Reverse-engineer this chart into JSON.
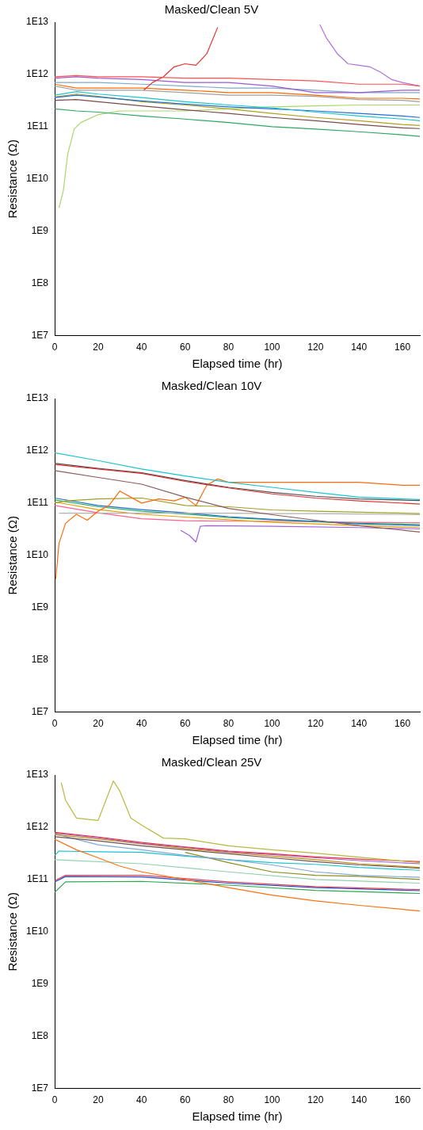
{
  "chart_data": [
    {
      "type": "line",
      "title": "Masked/Clean 5V",
      "xlabel": "Elapsed time (hr)",
      "ylabel": "Resistance (Ω)",
      "xlim": [
        0,
        168
      ],
      "xticks": [
        0,
        20,
        40,
        60,
        80,
        100,
        120,
        140,
        160
      ],
      "ylim": [
        10000000.0,
        10000000000000.0
      ],
      "yticks": [
        {
          "value": 10000000.0,
          "label": "1E7"
        },
        {
          "value": 100000000.0,
          "label": "1E8"
        },
        {
          "value": 1000000000.0,
          "label": "1E9"
        },
        {
          "value": 10000000000.0,
          "label": "1E10"
        },
        {
          "value": 100000000000.0,
          "label": "1E11"
        },
        {
          "value": 1000000000000.0,
          "label": "1E12"
        },
        {
          "value": 10000000000000.0,
          "label": "1E13"
        }
      ],
      "log": "y",
      "grid": false,
      "legend": false,
      "marker": "none",
      "line_style": "solid",
      "series": [
        {
          "color": "#ff5050",
          "x": [
            0,
            10,
            20,
            40,
            60,
            80,
            100,
            120,
            140,
            160,
            168
          ],
          "values": [
            900000000000.0,
            950000000000.0,
            900000000000.0,
            900000000000.0,
            850000000000.0,
            850000000000.0,
            800000000000.0,
            750000000000.0,
            650000000000.0,
            650000000000.0,
            600000000000.0
          ]
        },
        {
          "color": "#e8322c",
          "x": [
            41,
            45,
            50,
            55,
            60,
            65,
            70,
            75
          ],
          "values": [
            500000000000.0,
            700000000000.0,
            900000000000.0,
            1400000000000.0,
            1600000000000.0,
            1500000000000.0,
            2500000000000.0,
            8000000000000.0
          ]
        },
        {
          "color": "#9b59d0",
          "x": [
            0,
            10,
            20,
            40,
            60,
            80,
            100,
            120,
            140,
            160,
            168
          ],
          "values": [
            850000000000.0,
            900000000000.0,
            850000000000.0,
            800000000000.0,
            700000000000.0,
            700000000000.0,
            600000000000.0,
            450000000000.0,
            450000000000.0,
            500000000000.0,
            500000000000.0
          ]
        },
        {
          "color": "#b070e0",
          "x": [
            122,
            125,
            130,
            135,
            140,
            145,
            150,
            155,
            160,
            168
          ],
          "values": [
            9000000000000.0,
            5000000000000.0,
            2500000000000.0,
            1600000000000.0,
            1500000000000.0,
            1400000000000.0,
            1100000000000.0,
            800000000000.0,
            700000000000.0,
            600000000000.0
          ]
        },
        {
          "color": "#7fa7c9",
          "x": [
            0,
            10,
            20,
            40,
            60,
            80,
            100,
            120,
            140,
            160,
            168
          ],
          "values": [
            700000000000.0,
            700000000000.0,
            700000000000.0,
            650000000000.0,
            600000000000.0,
            550000000000.0,
            550000000000.0,
            500000000000.0,
            450000000000.0,
            450000000000.0,
            450000000000.0
          ]
        },
        {
          "color": "#ff6a00",
          "x": [
            0,
            10,
            20,
            40,
            60,
            80,
            100,
            120,
            140,
            160,
            168
          ],
          "values": [
            650000000000.0,
            550000000000.0,
            550000000000.0,
            550000000000.0,
            500000000000.0,
            450000000000.0,
            450000000000.0,
            400000000000.0,
            350000000000.0,
            350000000000.0,
            340000000000.0
          ]
        },
        {
          "color": "#a0a0a0",
          "x": [
            0,
            10,
            20,
            40,
            60,
            80,
            100,
            120,
            140,
            160,
            168
          ],
          "values": [
            600000000000.0,
            500000000000.0,
            500000000000.0,
            500000000000.0,
            450000000000.0,
            400000000000.0,
            400000000000.0,
            380000000000.0,
            330000000000.0,
            320000000000.0,
            300000000000.0
          ]
        },
        {
          "color": "#19c3d0",
          "x": [
            0,
            10,
            20,
            40,
            60,
            80,
            100,
            120,
            140,
            160,
            168
          ],
          "values": [
            400000000000.0,
            470000000000.0,
            420000000000.0,
            360000000000.0,
            300000000000.0,
            260000000000.0,
            230000000000.0,
            190000000000.0,
            160000000000.0,
            140000000000.0,
            130000000000.0
          ]
        },
        {
          "color": "#1f6fd6",
          "x": [
            0,
            10,
            20,
            40,
            60,
            80,
            100,
            120,
            140,
            160,
            168
          ],
          "values": [
            360000000000.0,
            400000000000.0,
            370000000000.0,
            310000000000.0,
            270000000000.0,
            240000000000.0,
            220000000000.0,
            200000000000.0,
            180000000000.0,
            160000000000.0,
            150000000000.0
          ]
        },
        {
          "color": "#b0a020",
          "x": [
            0,
            10,
            20,
            40,
            60,
            80,
            100,
            120,
            140,
            160,
            168
          ],
          "values": [
            370000000000.0,
            420000000000.0,
            380000000000.0,
            300000000000.0,
            260000000000.0,
            220000000000.0,
            180000000000.0,
            150000000000.0,
            130000000000.0,
            110000000000.0,
            105000000000.0
          ]
        },
        {
          "color": "#7a4a4a",
          "x": [
            0,
            10,
            20,
            40,
            60,
            80,
            100,
            120,
            140,
            160,
            168
          ],
          "values": [
            320000000000.0,
            330000000000.0,
            300000000000.0,
            250000000000.0,
            210000000000.0,
            180000000000.0,
            150000000000.0,
            130000000000.0,
            110000000000.0,
            95000000000.0,
            92000000000.0
          ]
        },
        {
          "color": "#2ca860",
          "x": [
            0,
            10,
            20,
            40,
            60,
            80,
            100,
            120,
            140,
            160,
            168
          ],
          "values": [
            220000000000.0,
            200000000000.0,
            190000000000.0,
            160000000000.0,
            140000000000.0,
            120000000000.0,
            100000000000.0,
            90000000000.0,
            80000000000.0,
            70000000000.0,
            65000000000.0
          ]
        },
        {
          "color": "#a8d86a",
          "x": [
            2,
            4,
            6,
            9,
            12,
            20,
            30,
            40,
            60,
            80,
            100,
            120,
            140,
            168
          ],
          "values": [
            2800000000.0,
            6000000000.0,
            30000000000.0,
            90000000000.0,
            120000000000.0,
            170000000000.0,
            200000000000.0,
            200000000000.0,
            200000000000.0,
            220000000000.0,
            240000000000.0,
            250000000000.0,
            260000000000.0,
            260000000000.0
          ]
        }
      ]
    },
    {
      "type": "line",
      "title": "Masked/Clean 10V",
      "xlabel": "Elapsed time (hr)",
      "ylabel": "Resistance (Ω)",
      "xlim": [
        0,
        168
      ],
      "xticks": [
        0,
        20,
        40,
        60,
        80,
        100,
        120,
        140,
        160
      ],
      "ylim": [
        10000000.0,
        10000000000000.0
      ],
      "yticks": [
        {
          "value": 10000000.0,
          "label": "1E7"
        },
        {
          "value": 100000000.0,
          "label": "1E8"
        },
        {
          "value": 1000000000.0,
          "label": "1E9"
        },
        {
          "value": 10000000000.0,
          "label": "1E10"
        },
        {
          "value": 100000000000.0,
          "label": "1E11"
        },
        {
          "value": 1000000000000.0,
          "label": "1E12"
        },
        {
          "value": 10000000000000.0,
          "label": "1E13"
        }
      ],
      "log": "y",
      "grid": false,
      "legend": false,
      "marker": "none",
      "line_style": "solid",
      "series": [
        {
          "color": "#19c3d0",
          "x": [
            0,
            20,
            40,
            60,
            80,
            100,
            120,
            140,
            168
          ],
          "values": [
            920000000000.0,
            650000000000.0,
            450000000000.0,
            330000000000.0,
            250000000000.0,
            200000000000.0,
            160000000000.0,
            130000000000.0,
            117000000000.0
          ]
        },
        {
          "color": "#e03030",
          "x": [
            0,
            20,
            40,
            60,
            80,
            100,
            120,
            140,
            168
          ],
          "values": [
            550000000000.0,
            450000000000.0,
            370000000000.0,
            260000000000.0,
            195000000000.0,
            150000000000.0,
            125000000000.0,
            110000000000.0,
            96000000000.0
          ]
        },
        {
          "color": "#505050",
          "x": [
            0,
            20,
            40,
            60,
            80,
            100,
            120,
            140,
            168
          ],
          "values": [
            580000000000.0,
            460000000000.0,
            380000000000.0,
            270000000000.0,
            200000000000.0,
            160000000000.0,
            135000000000.0,
            120000000000.0,
            112000000000.0
          ]
        },
        {
          "color": "#8a5a5a",
          "x": [
            0,
            20,
            40,
            60,
            80,
            100,
            120,
            140,
            168
          ],
          "values": [
            420000000000.0,
            310000000000.0,
            230000000000.0,
            130000000000.0,
            79000000000.0,
            60000000000.0,
            47000000000.0,
            37000000000.0,
            28000000000.0
          ]
        },
        {
          "color": "#ff6a10",
          "x": [
            0.5,
            2,
            5,
            10,
            15,
            20,
            25,
            30,
            35,
            40,
            48,
            55,
            60,
            65,
            70,
            75,
            80,
            100,
            120,
            140,
            160,
            168
          ],
          "values": [
            3500000000.0,
            17000000000.0,
            41000000000.0,
            61000000000.0,
            47000000000.0,
            70000000000.0,
            90000000000.0,
            170000000000.0,
            130000000000.0,
            100000000000.0,
            120000000000.0,
            110000000000.0,
            130000000000.0,
            90000000000.0,
            220000000000.0,
            290000000000.0,
            250000000000.0,
            250000000000.0,
            250000000000.0,
            250000000000.0,
            220000000000.0,
            220000000000.0
          ]
        },
        {
          "color": "#a0a020",
          "x": [
            0,
            5,
            20,
            40,
            60,
            80,
            100,
            120,
            168
          ],
          "values": [
            100000000000.0,
            110000000000.0,
            120000000000.0,
            125000000000.0,
            90000000000.0,
            85000000000.0,
            74000000000.0,
            70000000000.0,
            63000000000.0
          ]
        },
        {
          "color": "#b0b0b0",
          "x": [
            2,
            20,
            40,
            60,
            80,
            100,
            120,
            140,
            168
          ],
          "values": [
            64000000000.0,
            64000000000.0,
            64000000000.0,
            64000000000.0,
            64000000000.0,
            63000000000.0,
            63000000000.0,
            62000000000.0,
            60000000000.0
          ]
        },
        {
          "color": "#2070d0",
          "x": [
            0,
            20,
            40,
            60,
            80,
            100,
            120,
            140,
            168
          ],
          "values": [
            125000000000.0,
            90000000000.0,
            75000000000.0,
            65000000000.0,
            55000000000.0,
            49000000000.0,
            45000000000.0,
            40000000000.0,
            37000000000.0
          ]
        },
        {
          "color": "#2ca860",
          "x": [
            0,
            20,
            40,
            60,
            80,
            100,
            120,
            140,
            168
          ],
          "values": [
            115000000000.0,
            85000000000.0,
            70000000000.0,
            62000000000.0,
            53000000000.0,
            48000000000.0,
            44000000000.0,
            41000000000.0,
            39000000000.0
          ]
        },
        {
          "color": "#e0a000",
          "x": [
            0,
            20,
            40,
            60,
            80,
            100,
            120,
            140,
            168
          ],
          "values": [
            105000000000.0,
            75000000000.0,
            61000000000.0,
            54000000000.0,
            48000000000.0,
            43000000000.0,
            40000000000.0,
            37000000000.0,
            34000000000.0
          ]
        },
        {
          "color": "#ff6090",
          "x": [
            0,
            20,
            40,
            60,
            80,
            100,
            120,
            140,
            168
          ],
          "values": [
            90000000000.0,
            65000000000.0,
            50000000000.0,
            46000000000.0,
            45000000000.0,
            45000000000.0,
            44000000000.0,
            43000000000.0,
            42000000000.0
          ]
        },
        {
          "color": "#a060e0",
          "x": [
            58,
            62,
            65,
            67,
            70,
            100,
            140,
            168
          ],
          "values": [
            30000000000.0,
            24000000000.0,
            18000000000.0,
            36000000000.0,
            37000000000.0,
            36000000000.0,
            34000000000.0,
            32000000000.0
          ]
        }
      ]
    },
    {
      "type": "line",
      "title": "Masked/Clean 25V",
      "xlabel": "Elapsed time (hr)",
      "ylabel": "Resistance (Ω)",
      "xlim": [
        0,
        168
      ],
      "xticks": [
        0,
        20,
        40,
        60,
        80,
        100,
        120,
        140,
        160
      ],
      "ylim": [
        10000000.0,
        10000000000000.0
      ],
      "yticks": [
        {
          "value": 10000000.0,
          "label": "1E7"
        },
        {
          "value": 100000000.0,
          "label": "1E8"
        },
        {
          "value": 1000000000.0,
          "label": "1E9"
        },
        {
          "value": 10000000000.0,
          "label": "1E10"
        },
        {
          "value": 100000000000.0,
          "label": "1E11"
        },
        {
          "value": 1000000000000.0,
          "label": "1E12"
        },
        {
          "value": 10000000000000.0,
          "label": "1E13"
        }
      ],
      "log": "y",
      "grid": false,
      "legend": false,
      "marker": "none",
      "line_style": "solid",
      "series": [
        {
          "color": "#b8b840",
          "x": [
            3,
            5,
            10,
            20,
            27,
            30,
            35,
            40,
            50,
            60,
            80,
            100,
            120,
            168
          ],
          "values": [
            7200000000000.0,
            3300000000000.0,
            1500000000000.0,
            1350000000000.0,
            7700000000000.0,
            4900000000000.0,
            1500000000000.0,
            1100000000000.0,
            620000000000.0,
            600000000000.0,
            440000000000.0,
            370000000000.0,
            320000000000.0,
            210000000000.0
          ]
        },
        {
          "color": "#f03040",
          "x": [
            0,
            20,
            40,
            60,
            80,
            100,
            120,
            140,
            168
          ],
          "values": [
            800000000000.0,
            650000000000.0,
            510000000000.0,
            420000000000.0,
            350000000000.0,
            310000000000.0,
            270000000000.0,
            245000000000.0,
            220000000000.0
          ]
        },
        {
          "color": "#a060d0",
          "x": [
            0,
            20,
            40,
            60,
            80,
            100,
            120,
            140,
            168
          ],
          "values": [
            770000000000.0,
            630000000000.0,
            490000000000.0,
            410000000000.0,
            340000000000.0,
            300000000000.0,
            260000000000.0,
            230000000000.0,
            200000000000.0
          ]
        },
        {
          "color": "#c09010",
          "x": [
            0,
            20,
            40,
            60,
            80,
            100,
            120,
            140,
            168
          ],
          "values": [
            720000000000.0,
            600000000000.0,
            480000000000.0,
            390000000000.0,
            330000000000.0,
            280000000000.0,
            240000000000.0,
            200000000000.0,
            170000000000.0
          ]
        },
        {
          "color": "#705050",
          "x": [
            0,
            20,
            40,
            60,
            80,
            100,
            120,
            140,
            168
          ],
          "values": [
            660000000000.0,
            550000000000.0,
            440000000000.0,
            370000000000.0,
            310000000000.0,
            260000000000.0,
            220000000000.0,
            190000000000.0,
            165000000000.0
          ]
        },
        {
          "color": "#7fa7d9",
          "x": [
            0,
            20,
            40,
            60,
            80,
            100,
            120,
            140,
            168
          ],
          "values": [
            750000000000.0,
            460000000000.0,
            370000000000.0,
            290000000000.0,
            240000000000.0,
            190000000000.0,
            140000000000.0,
            120000000000.0,
            110000000000.0
          ]
        },
        {
          "color": "#8c8c1a",
          "x": [
            60,
            80,
            100,
            120,
            140,
            168
          ],
          "values": [
            330000000000.0,
            210000000000.0,
            140000000000.0,
            120000000000.0,
            115000000000.0,
            100000000000.0
          ]
        },
        {
          "color": "#ff7010",
          "x": [
            0,
            10,
            20,
            30,
            40,
            60,
            80,
            100,
            120,
            140,
            168
          ],
          "values": [
            590000000000.0,
            370000000000.0,
            260000000000.0,
            180000000000.0,
            140000000000.0,
            100000000000.0,
            70000000000.0,
            50000000000.0,
            39000000000.0,
            32000000000.0,
            25000000000.0
          ]
        },
        {
          "color": "#19c3d0",
          "x": [
            0,
            2,
            20,
            40,
            60,
            80,
            100,
            120,
            140,
            168
          ],
          "values": [
            290000000000.0,
            350000000000.0,
            340000000000.0,
            330000000000.0,
            280000000000.0,
            240000000000.0,
            210000000000.0,
            195000000000.0,
            170000000000.0,
            150000000000.0
          ]
        },
        {
          "color": "#90d0b0",
          "x": [
            0,
            40,
            80,
            120,
            168
          ],
          "values": [
            240000000000.0,
            200000000000.0,
            140000000000.0,
            100000000000.0,
            85000000000.0
          ]
        },
        {
          "color": "#e04050",
          "x": [
            0,
            5,
            40,
            80,
            120,
            168
          ],
          "values": [
            95000000000.0,
            120000000000.0,
            120000000000.0,
            90000000000.0,
            73000000000.0,
            64000000000.0
          ]
        },
        {
          "color": "#2050d0",
          "x": [
            0,
            5,
            40,
            80,
            120,
            168
          ],
          "values": [
            90000000000.0,
            114000000000.0,
            112000000000.0,
            85000000000.0,
            70000000000.0,
            61000000000.0
          ]
        },
        {
          "color": "#2ca850",
          "x": [
            0,
            5,
            40,
            80,
            120,
            168
          ],
          "values": [
            57000000000.0,
            90000000000.0,
            92000000000.0,
            78000000000.0,
            62000000000.0,
            54000000000.0
          ]
        }
      ]
    }
  ]
}
